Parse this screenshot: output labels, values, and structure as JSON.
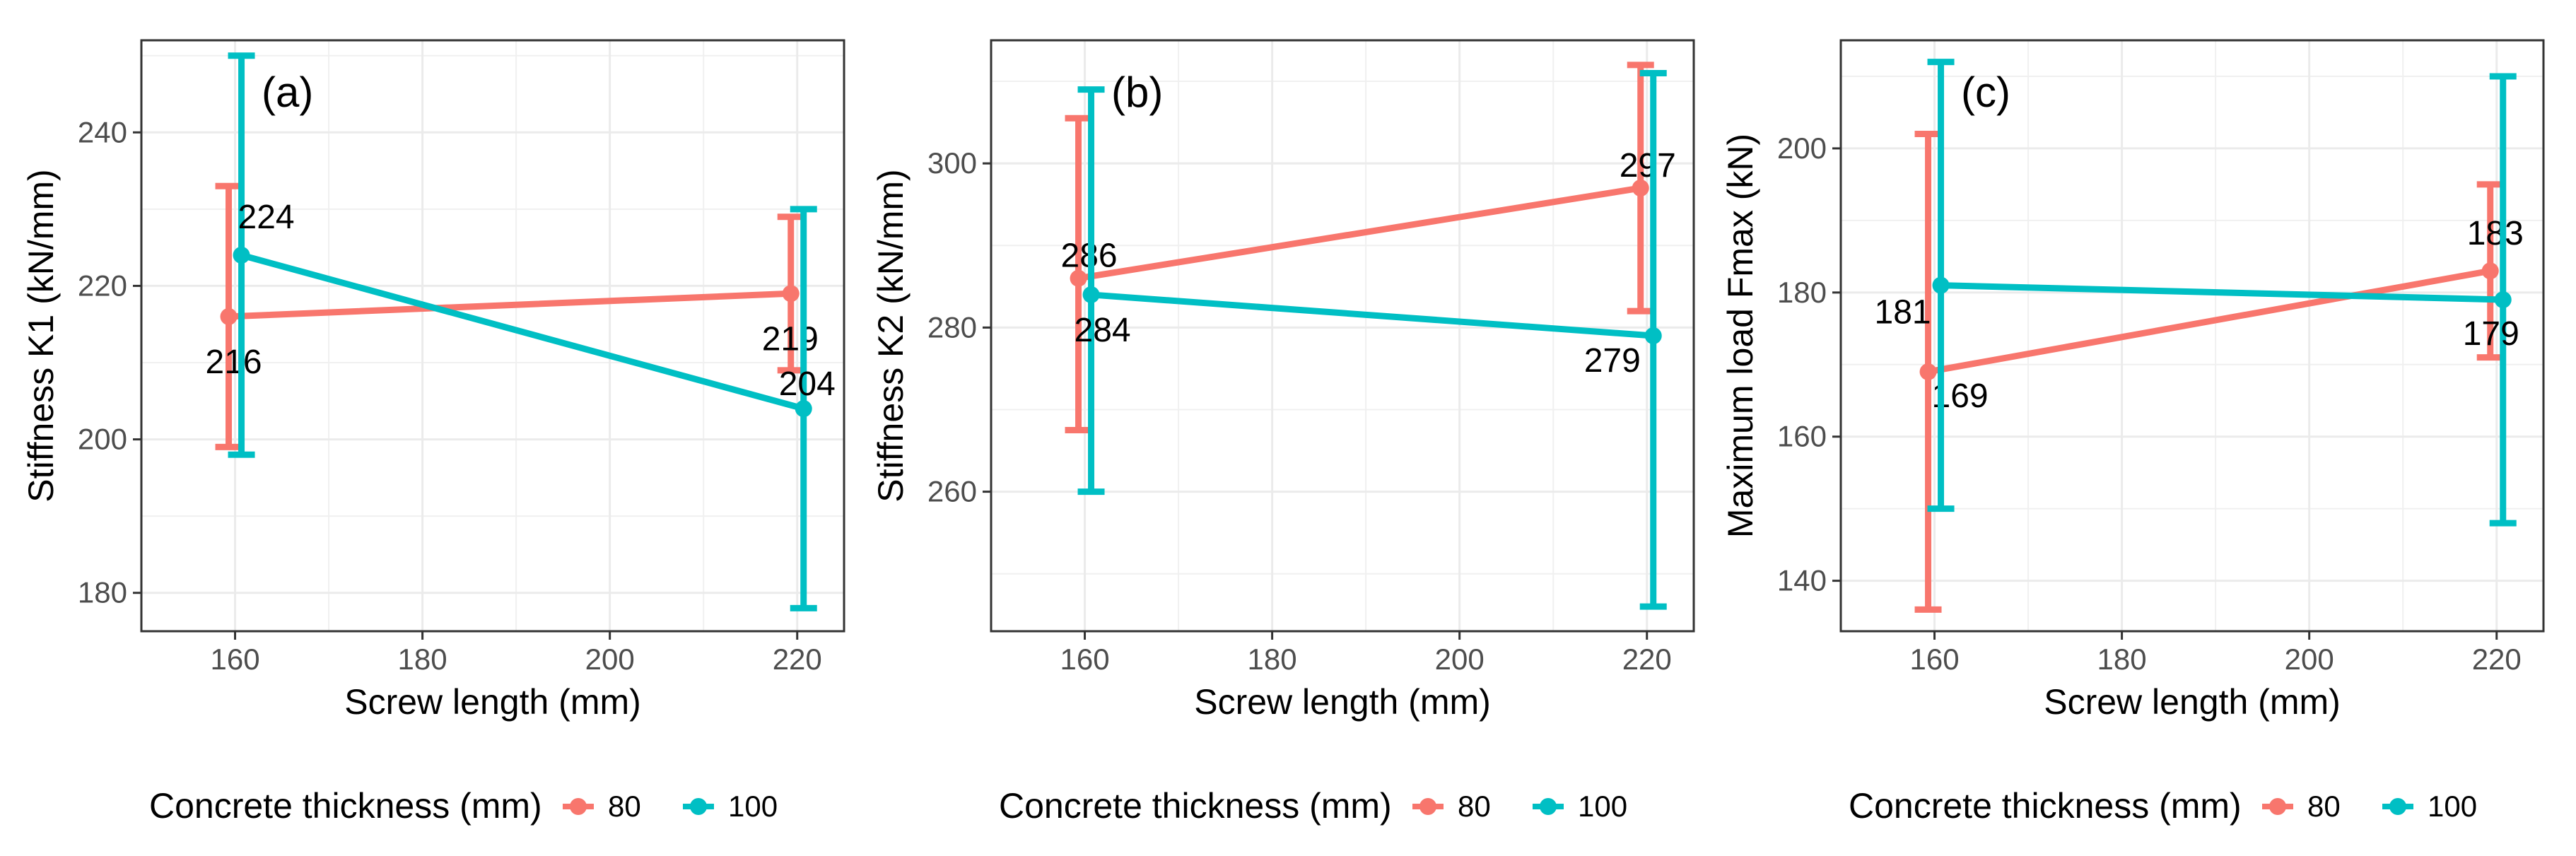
{
  "chart_data": [
    {
      "type": "line",
      "panel": "(a)",
      "xlabel": "Screw length (mm)",
      "ylabel": "Stiffness K1 (kN/mm)",
      "xlim": [
        150,
        225
      ],
      "ylim": [
        175,
        252
      ],
      "xticks": [
        160,
        180,
        200,
        220
      ],
      "yticks": [
        180,
        200,
        220,
        240
      ],
      "series": [
        {
          "name": "80",
          "color": "#F8766D",
          "points": [
            {
              "x": 160,
              "y": 216,
              "ymin": 199,
              "ymax": 233,
              "label": "216"
            },
            {
              "x": 220,
              "y": 219,
              "ymin": 209,
              "ymax": 229,
              "label": "219"
            }
          ]
        },
        {
          "name": "100",
          "color": "#00BFC4",
          "points": [
            {
              "x": 160,
              "y": 224,
              "ymin": 198,
              "ymax": 250,
              "label": "224"
            },
            {
              "x": 220,
              "y": 204,
              "ymin": 178,
              "ymax": 230,
              "label": "204"
            }
          ]
        }
      ]
    },
    {
      "type": "line",
      "panel": "(b)",
      "xlabel": "Screw length (mm)",
      "ylabel": "Stiffness K2 (kN/mm)",
      "xlim": [
        150,
        225
      ],
      "ylim": [
        243,
        315
      ],
      "xticks": [
        160,
        180,
        200,
        220
      ],
      "yticks": [
        260,
        280,
        300
      ],
      "series": [
        {
          "name": "80",
          "color": "#F8766D",
          "points": [
            {
              "x": 160,
              "y": 286,
              "ymin": 267.5,
              "ymax": 305.5,
              "label": "286"
            },
            {
              "x": 220,
              "y": 297,
              "ymin": 282,
              "ymax": 312,
              "label": "297"
            }
          ]
        },
        {
          "name": "100",
          "color": "#00BFC4",
          "points": [
            {
              "x": 160,
              "y": 284,
              "ymin": 260,
              "ymax": 309,
              "label": "284"
            },
            {
              "x": 220,
              "y": 279,
              "ymin": 246,
              "ymax": 311,
              "label": "279"
            }
          ]
        }
      ]
    },
    {
      "type": "line",
      "panel": "(c)",
      "xlabel": "Screw length (mm)",
      "ylabel": "Maximum load Fmax (kN)",
      "xlim": [
        150,
        225
      ],
      "ylim": [
        133,
        215
      ],
      "xticks": [
        160,
        180,
        200,
        220
      ],
      "yticks": [
        140,
        160,
        180,
        200
      ],
      "series": [
        {
          "name": "80",
          "color": "#F8766D",
          "points": [
            {
              "x": 160,
              "y": 169,
              "ymin": 136,
              "ymax": 202,
              "label": "169"
            },
            {
              "x": 220,
              "y": 183,
              "ymin": 171,
              "ymax": 195,
              "label": "183"
            }
          ]
        },
        {
          "name": "100",
          "color": "#00BFC4",
          "points": [
            {
              "x": 160,
              "y": 181,
              "ymin": 150,
              "ymax": 212,
              "label": "181"
            },
            {
              "x": 220,
              "y": 179,
              "ymin": 148,
              "ymax": 210,
              "label": "179"
            }
          ]
        }
      ]
    }
  ],
  "legend": {
    "title": "Concrete thickness (mm)",
    "entries": [
      {
        "label": "80",
        "color": "#F8766D"
      },
      {
        "label": "100",
        "color": "#00BFC4"
      }
    ]
  }
}
